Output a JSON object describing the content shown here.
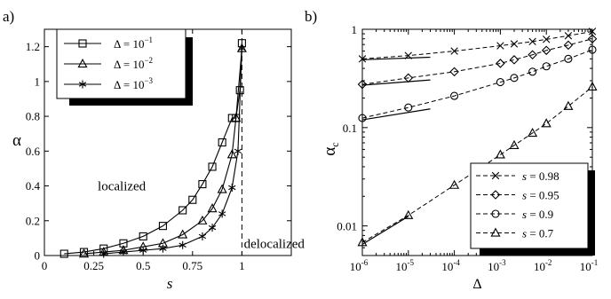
{
  "chart_data": [
    {
      "panel_label": "a)",
      "type": "line",
      "xlabel": "s",
      "ylabel": "α",
      "xlim": [
        0,
        1.25
      ],
      "ylim": [
        0,
        1.3
      ],
      "x_ticks": [
        {
          "v": 0,
          "label": "0"
        },
        {
          "v": 0.25,
          "label": "0.25"
        },
        {
          "v": 0.5,
          "label": "0.5"
        },
        {
          "v": 0.75,
          "label": "0.75"
        },
        {
          "v": 1,
          "label": "1"
        }
      ],
      "y_ticks": [
        {
          "v": 0,
          "label": "0"
        },
        {
          "v": 0.2,
          "label": "0.2"
        },
        {
          "v": 0.4,
          "label": "0.4"
        },
        {
          "v": 0.6,
          "label": "0.6"
        },
        {
          "v": 0.8,
          "label": "0.8"
        },
        {
          "v": 1,
          "label": "1"
        },
        {
          "v": 1.2,
          "label": "1.2"
        }
      ],
      "annotations": [
        {
          "text": "localized",
          "x": 0.27,
          "y": 0.4
        },
        {
          "text": "delocalized",
          "x": 1.01,
          "y": 0.07
        }
      ],
      "vline": {
        "x": 1,
        "style": "dashed"
      },
      "legend": "top-left",
      "series": [
        {
          "name": "Δ = 10",
          "exp": "−1",
          "marker": "square",
          "x": [
            0.1,
            0.2,
            0.3,
            0.4,
            0.5,
            0.6,
            0.7,
            0.75,
            0.8,
            0.85,
            0.9,
            0.95,
            0.97,
            0.99,
            1.0
          ],
          "y": [
            0.01,
            0.02,
            0.04,
            0.07,
            0.11,
            0.17,
            0.26,
            0.32,
            0.41,
            0.51,
            0.65,
            0.79,
            0.79,
            0.95,
            1.22
          ]
        },
        {
          "name": "Δ = 10",
          "exp": "−2",
          "marker": "triangle",
          "x": [
            0.2,
            0.3,
            0.4,
            0.5,
            0.6,
            0.7,
            0.8,
            0.85,
            0.9,
            0.95,
            0.97,
            1.0
          ],
          "y": [
            0.01,
            0.02,
            0.03,
            0.05,
            0.07,
            0.12,
            0.2,
            0.27,
            0.38,
            0.58,
            0.79,
            1.19
          ]
        },
        {
          "name": "Δ = 10",
          "exp": "−3",
          "marker": "star",
          "x": [
            0.3,
            0.4,
            0.5,
            0.6,
            0.7,
            0.8,
            0.85,
            0.9,
            0.95,
            0.98,
            1.0
          ],
          "y": [
            0.01,
            0.02,
            0.03,
            0.04,
            0.06,
            0.11,
            0.16,
            0.24,
            0.39,
            0.6,
            1.19
          ]
        }
      ]
    },
    {
      "panel_label": "b)",
      "type": "line",
      "xlabel": "Δ",
      "ylabel": "αc",
      "xscale": "log",
      "yscale": "log",
      "xlim": [
        1e-06,
        0.1
      ],
      "ylim": [
        0.005,
        1
      ],
      "x_ticks": [
        {
          "v": 1e-06,
          "base": "10",
          "exp": "-6"
        },
        {
          "v": 1e-05,
          "base": "10",
          "exp": "-5"
        },
        {
          "v": 0.0001,
          "base": "10",
          "exp": "-4"
        },
        {
          "v": 0.001,
          "base": "10",
          "exp": "-3"
        },
        {
          "v": 0.01,
          "base": "10",
          "exp": "-2"
        },
        {
          "v": 0.1,
          "base": "10",
          "exp": "-1"
        }
      ],
      "y_ticks": [
        {
          "v": 0.01,
          "label": "0.01"
        },
        {
          "v": 0.1,
          "label": "0.1"
        },
        {
          "v": 1,
          "label": "1"
        }
      ],
      "legend": "bottom-right",
      "series": [
        {
          "name": "s = 0.98",
          "marker": "x",
          "x": [
            1e-06,
            1e-05,
            0.0001,
            0.001,
            0.002,
            0.005,
            0.01,
            0.03,
            0.1
          ],
          "y": [
            0.5,
            0.54,
            0.6,
            0.68,
            0.71,
            0.75,
            0.79,
            0.86,
            0.95
          ],
          "fit": {
            "x": [
              1e-06,
              3e-05
            ],
            "y": [
              0.49,
              0.52
            ]
          }
        },
        {
          "name": "s = 0.95",
          "marker": "diamond",
          "x": [
            1e-06,
            1e-05,
            0.0001,
            0.001,
            0.002,
            0.005,
            0.01,
            0.03,
            0.1
          ],
          "y": [
            0.275,
            0.32,
            0.37,
            0.45,
            0.49,
            0.55,
            0.61,
            0.69,
            0.8
          ],
          "fit": {
            "x": [
              1e-06,
              3e-05
            ],
            "y": [
              0.27,
              0.305
            ]
          }
        },
        {
          "name": "s = 0.9",
          "marker": "circle",
          "x": [
            1e-06,
            1e-05,
            0.0001,
            0.001,
            0.002,
            0.005,
            0.01,
            0.03,
            0.1
          ],
          "y": [
            0.125,
            0.16,
            0.21,
            0.29,
            0.32,
            0.37,
            0.42,
            0.5,
            0.62
          ],
          "fit": {
            "x": [
              1e-06,
              3e-05
            ],
            "y": [
              0.12,
              0.155
            ]
          }
        },
        {
          "name": "s = 0.7",
          "marker": "triangle",
          "x": [
            1e-06,
            1e-05,
            0.0001,
            0.001,
            0.002,
            0.005,
            0.01,
            0.03,
            0.1
          ],
          "y": [
            0.0068,
            0.0128,
            0.026,
            0.053,
            0.066,
            0.088,
            0.11,
            0.165,
            0.26
          ],
          "fit": {
            "x": [
              1e-06,
              1e-05
            ],
            "y": [
              0.0065,
              0.0125
            ]
          }
        }
      ]
    }
  ]
}
